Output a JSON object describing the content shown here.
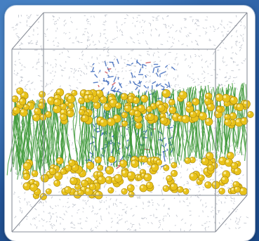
{
  "image": {
    "subject": "molecular-dynamics-membrane-simulation-box",
    "colors": {
      "background": "#2d5f9e",
      "frame": "#ffffff",
      "box_edges": "#8a8f99",
      "water": "#b9bec8",
      "lipid_heads": "#e8c21a",
      "lipid_tails": "#3f9a3a",
      "protein": "#2f5fb8",
      "protein_accent": "#c8454e"
    }
  }
}
